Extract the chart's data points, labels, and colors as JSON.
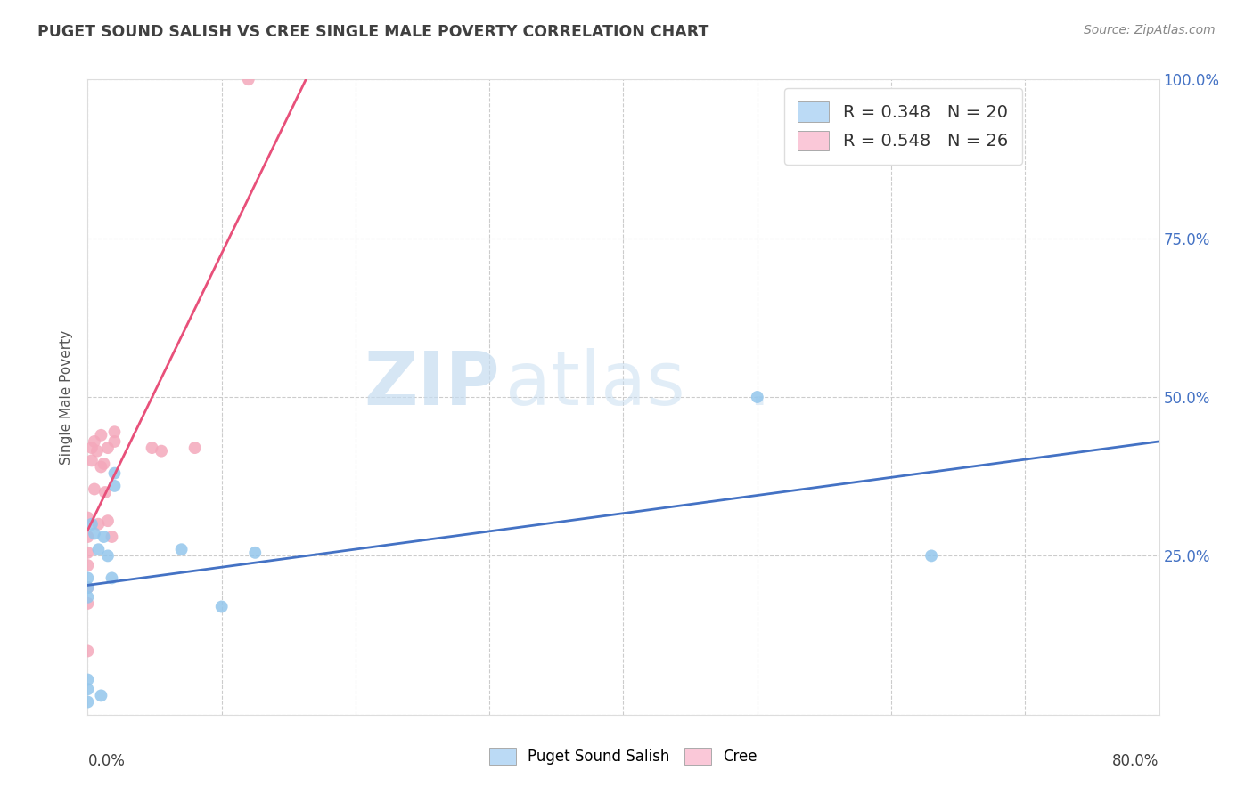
{
  "title": "PUGET SOUND SALISH VS CREE SINGLE MALE POVERTY CORRELATION CHART",
  "source": "Source: ZipAtlas.com",
  "ylabel": "Single Male Poverty",
  "legend_bottom": [
    "Puget Sound Salish",
    "Cree"
  ],
  "xlim": [
    0.0,
    0.8
  ],
  "ylim": [
    0.0,
    1.0
  ],
  "yticks": [
    0.0,
    0.25,
    0.5,
    0.75,
    1.0
  ],
  "ytick_labels": [
    "",
    "25.0%",
    "50.0%",
    "75.0%",
    "100.0%"
  ],
  "background_color": "#ffffff",
  "puget_color": "#93C6EC",
  "cree_color": "#F4A8BB",
  "puget_r": 0.348,
  "puget_n": 20,
  "cree_r": 0.548,
  "cree_n": 26,
  "puget_points_x": [
    0.0,
    0.0,
    0.0,
    0.0,
    0.0,
    0.0,
    0.003,
    0.005,
    0.008,
    0.01,
    0.012,
    0.015,
    0.018,
    0.02,
    0.02,
    0.07,
    0.1,
    0.125,
    0.5,
    0.63
  ],
  "puget_points_y": [
    0.215,
    0.2,
    0.185,
    0.055,
    0.04,
    0.02,
    0.3,
    0.285,
    0.26,
    0.03,
    0.28,
    0.25,
    0.215,
    0.38,
    0.36,
    0.26,
    0.17,
    0.255,
    0.5,
    0.25
  ],
  "cree_points_x": [
    0.0,
    0.0,
    0.0,
    0.0,
    0.0,
    0.0,
    0.0,
    0.003,
    0.003,
    0.005,
    0.005,
    0.007,
    0.008,
    0.01,
    0.01,
    0.012,
    0.013,
    0.015,
    0.015,
    0.018,
    0.02,
    0.02,
    0.048,
    0.055,
    0.08,
    0.12
  ],
  "cree_points_y": [
    0.31,
    0.28,
    0.255,
    0.235,
    0.2,
    0.175,
    0.1,
    0.42,
    0.4,
    0.43,
    0.355,
    0.415,
    0.3,
    0.44,
    0.39,
    0.395,
    0.35,
    0.42,
    0.305,
    0.28,
    0.43,
    0.445,
    0.42,
    0.415,
    0.42,
    1.0
  ],
  "grid_color": "#cccccc",
  "reg_color_puget": "#4472C4",
  "reg_color_cree": "#E8507A",
  "puget_intercept": 0.218,
  "puget_slope": 0.27,
  "cree_intercept": 0.3,
  "cree_slope": 5.0
}
